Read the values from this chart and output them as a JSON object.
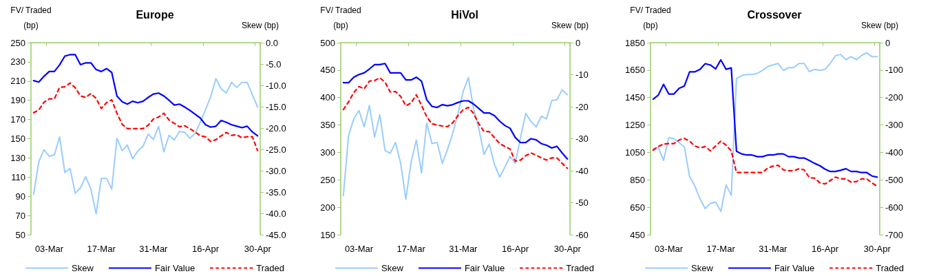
{
  "chart_data": [
    {
      "type": "line",
      "title": "Europe",
      "ylabel": "FV/ Traded\n(bp)",
      "y2label": "Skew (bp)",
      "categories": [
        null,
        null,
        null,
        "03-Mar",
        null,
        null,
        null,
        null,
        null,
        null,
        null,
        null,
        null,
        "17-Mar",
        null,
        null,
        null,
        null,
        null,
        null,
        null,
        null,
        null,
        "31-Mar",
        null,
        null,
        null,
        null,
        null,
        null,
        null,
        null,
        null,
        "16-Apr",
        null,
        null,
        null,
        null,
        null,
        null,
        null,
        null,
        null,
        "30-Apr"
      ],
      "ylim": [
        50,
        250
      ],
      "yticks": [
        50,
        70,
        90,
        110,
        130,
        150,
        170,
        190,
        210,
        230,
        250
      ],
      "y2lim": [
        -45,
        0
      ],
      "y2ticks": [
        {
          "value": -45,
          "label": "-45.0"
        },
        {
          "value": -40,
          "label": "-40.0"
        },
        {
          "value": -35,
          "label": "-35.0"
        },
        {
          "value": -30,
          "label": "-30.0"
        },
        {
          "value": -25,
          "label": "-25.0"
        },
        {
          "value": -20,
          "label": "-20.0"
        },
        {
          "value": -15,
          "label": "-15.0"
        },
        {
          "value": -10,
          "label": "-10.0"
        },
        {
          "value": -5,
          "label": "-5.0"
        },
        {
          "value": 0,
          "label": "0.0"
        }
      ],
      "grid": false,
      "legend": "bottom",
      "marker": "none",
      "series": [
        {
          "name": "Skew",
          "color": "#99ccff",
          "axis": "y2",
          "line_style": "solid",
          "values": [
            -35.6,
            -27.9,
            -25.1,
            -26.6,
            -26.3,
            -22.1,
            -30.4,
            -29.5,
            -35.3,
            -34.0,
            -31.4,
            -34.3,
            -40.1,
            -31.8,
            -31.8,
            -34.3,
            -22.4,
            -25.3,
            -24.0,
            -27.2,
            -25.4,
            -24.3,
            -21.4,
            -22.7,
            -19.6,
            -25.6,
            -21.7,
            -22.8,
            -20.8,
            -21.0,
            -22.4,
            -21.3,
            -18.6,
            -15.7,
            -12.7,
            -8.4,
            -10.8,
            -11.8,
            -9.3,
            -10.5,
            -9.3,
            -9.3,
            -12.2,
            -15.1
          ]
        },
        {
          "name": "Fair Value",
          "color": "#0000ff",
          "line_style": "solid",
          "values": [
            210.5,
            209,
            215,
            220,
            220,
            227,
            236,
            237.5,
            237.5,
            227,
            229,
            229,
            222,
            220,
            223,
            219,
            194.5,
            188.5,
            186,
            189,
            187.5,
            189,
            193,
            196.5,
            197.5,
            194.5,
            190,
            185,
            186,
            183,
            179.5,
            175.5,
            171.5,
            164.5,
            162,
            163,
            169,
            167,
            164.5,
            163,
            161.5,
            163,
            157,
            153
          ]
        },
        {
          "name": "Traded",
          "color": "#ff0000",
          "line_style": "dashed",
          "values": [
            177,
            180,
            188,
            191.5,
            191.5,
            203.5,
            204,
            208,
            203,
            194.5,
            193,
            197,
            192,
            181.5,
            187.5,
            190.5,
            176.5,
            165,
            160.5,
            160.5,
            160.5,
            160.5,
            164,
            170.5,
            172.5,
            176.5,
            169.5,
            166,
            162.5,
            163.5,
            160.5,
            157,
            153,
            152,
            147,
            149,
            153,
            156.5,
            153.5,
            154,
            151,
            152,
            152,
            137.5
          ]
        }
      ]
    },
    {
      "type": "line",
      "title": "HiVol",
      "ylabel": "FV/ Traded\n(bp)",
      "y2label": "Skew (bp)",
      "categories": [
        null,
        null,
        null,
        "03-Mar",
        null,
        null,
        null,
        null,
        null,
        null,
        null,
        null,
        null,
        "17-Mar",
        null,
        null,
        null,
        null,
        null,
        null,
        null,
        null,
        null,
        "31-Mar",
        null,
        null,
        null,
        null,
        null,
        null,
        null,
        null,
        null,
        "16-Apr",
        null,
        null,
        null,
        null,
        null,
        null,
        null,
        null,
        null,
        "30-Apr"
      ],
      "ylim": [
        150,
        500
      ],
      "yticks": [
        150,
        200,
        250,
        300,
        350,
        400,
        450,
        500
      ],
      "y2lim": [
        -60,
        0
      ],
      "y2ticks": [
        -60,
        -50,
        -40,
        -30,
        -20,
        -10,
        0
      ],
      "grid": false,
      "legend": "bottom",
      "marker": "none",
      "series": [
        {
          "name": "Skew",
          "color": "#99ccff",
          "axis": "y2",
          "line_style": "solid",
          "values": [
            -47.8,
            -29.0,
            -23.8,
            -21.2,
            -26.3,
            -19.6,
            -29.5,
            -22.5,
            -33.7,
            -34.6,
            -31.2,
            -37.7,
            -48.9,
            -37.3,
            -30.4,
            -40.7,
            -25.1,
            -31.5,
            -31.2,
            -37.7,
            -33.3,
            -28.3,
            -22.1,
            -15.2,
            -10.9,
            -20.7,
            -26.8,
            -34.9,
            -31.7,
            -38.0,
            -42.0,
            -38.9,
            -35.5,
            -37.7,
            -29.7,
            -22.1,
            -24.6,
            -26.3,
            -23.0,
            -23.8,
            -18.1,
            -17.8,
            -14.7,
            -16.3
          ]
        },
        {
          "name": "Fair Value",
          "color": "#0000ff",
          "line_style": "solid",
          "values": [
            427,
            427,
            437,
            442,
            445,
            452,
            460,
            460,
            462,
            445,
            445,
            445,
            432,
            432,
            437,
            430,
            396,
            384,
            382,
            387,
            385,
            387,
            391,
            394,
            394,
            388,
            380,
            372,
            372,
            367,
            357,
            349,
            344,
            327,
            318,
            318,
            325,
            323,
            316,
            313,
            308,
            311,
            299,
            288
          ]
        },
        {
          "name": "Traded",
          "color": "#ff0000",
          "line_style": "dashed",
          "values": [
            378,
            392,
            409,
            420,
            416,
            430,
            431,
            436,
            428,
            410,
            411,
            402,
            385,
            390,
            405,
            386,
            365,
            352,
            350,
            348,
            347,
            354,
            367,
            378,
            382,
            371,
            352,
            338,
            338,
            327,
            316,
            311,
            306,
            284,
            286,
            294,
            299,
            295,
            290,
            286,
            290,
            290,
            280,
            271
          ]
        }
      ]
    },
    {
      "type": "line",
      "title": "Crossover",
      "ylabel": "FV/ Traded\n(bp)",
      "y2label": "Skew (bp)",
      "categories": [
        null,
        null,
        null,
        "03-Mar",
        null,
        null,
        null,
        null,
        null,
        null,
        null,
        null,
        null,
        "17-Mar",
        null,
        null,
        null,
        null,
        null,
        null,
        null,
        null,
        null,
        "31-Mar",
        null,
        null,
        null,
        null,
        null,
        null,
        null,
        null,
        null,
        "16-Apr",
        null,
        null,
        null,
        null,
        null,
        null,
        null,
        null,
        null,
        "30-Apr"
      ],
      "ylim": [
        450,
        1850
      ],
      "yticks": [
        450,
        650,
        850,
        1050,
        1250,
        1450,
        1650,
        1850
      ],
      "y2lim": [
        -700,
        0
      ],
      "y2ticks": [
        -700,
        -600,
        -500,
        -400,
        -300,
        -200,
        -100,
        0
      ],
      "grid": false,
      "legend": "bottom",
      "marker": "none",
      "series": [
        {
          "name": "Skew",
          "color": "#99ccff",
          "axis": "y2",
          "line_style": "solid",
          "values": [
            -386,
            -382,
            -429,
            -346,
            -350,
            -365,
            -380,
            -488,
            -522,
            -569,
            -605,
            -586,
            -581,
            -615,
            -519,
            -556,
            -131,
            -120,
            -116,
            -116,
            -112,
            -101,
            -87,
            -81,
            -76,
            -101,
            -91,
            -91,
            -76,
            -76,
            -106,
            -97,
            -101,
            -97,
            -76,
            -47,
            -43,
            -62,
            -51,
            -62,
            -47,
            -37,
            -51,
            -51
          ]
        },
        {
          "name": "Fair Value",
          "color": "#0000ff",
          "line_style": "solid",
          "values": [
            1438,
            1468,
            1546,
            1476,
            1476,
            1518,
            1534,
            1637,
            1637,
            1656,
            1697,
            1687,
            1659,
            1725,
            1656,
            1666,
            1058,
            1039,
            1031,
            1031,
            1019,
            1019,
            1031,
            1031,
            1039,
            1039,
            1019,
            1019,
            1009,
            1009,
            991,
            970,
            953,
            928,
            911,
            911,
            920,
            931,
            911,
            911,
            903,
            903,
            878,
            870
          ]
        },
        {
          "name": "Traded",
          "color": "#ff0000",
          "line_style": "dashed",
          "values": [
            1066,
            1094,
            1111,
            1114,
            1114,
            1141,
            1152,
            1132,
            1097,
            1083,
            1093,
            1061,
            1097,
            1132,
            1103,
            1061,
            903,
            903,
            903,
            903,
            903,
            903,
            936,
            950,
            956,
            923,
            916,
            916,
            931,
            923,
            865,
            862,
            828,
            820,
            845,
            870,
            857,
            857,
            833,
            837,
            857,
            857,
            828,
            803
          ]
        }
      ]
    }
  ]
}
